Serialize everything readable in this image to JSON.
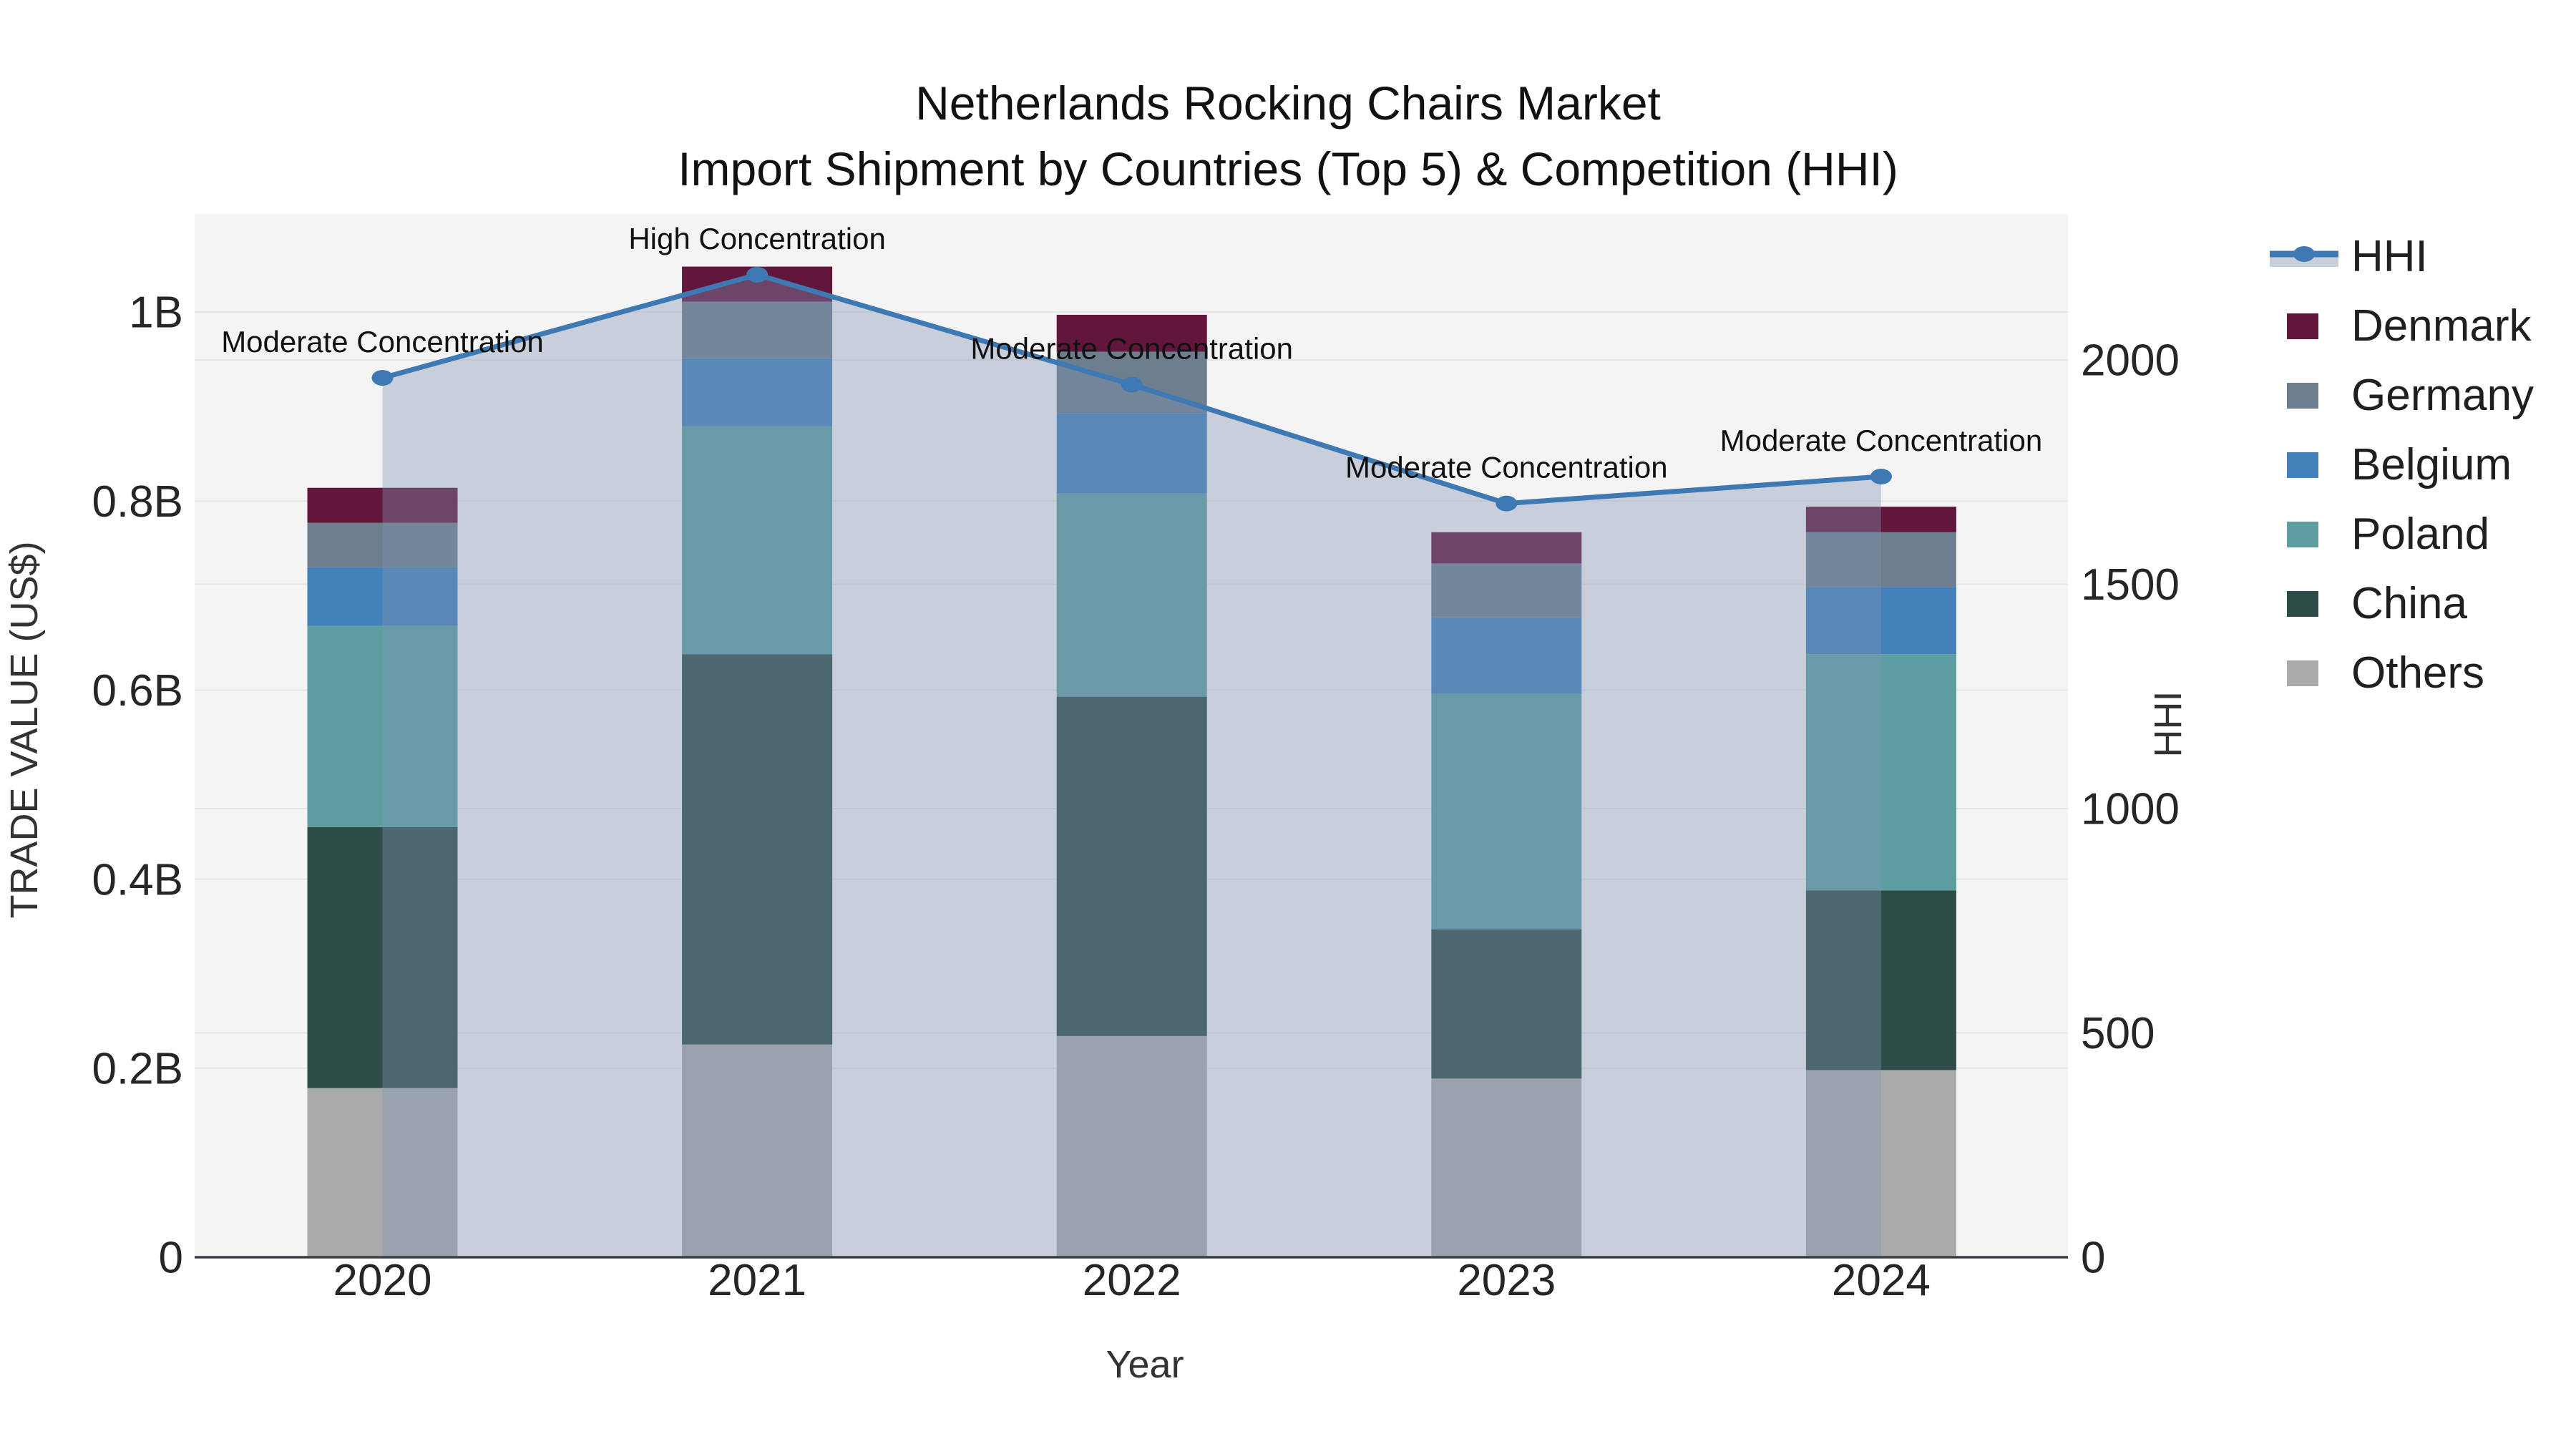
{
  "title": {
    "line1": "Netherlands Rocking Chairs Market",
    "line2": "Import Shipment by Countries (Top 5) & Competition (HHI)"
  },
  "chart_data": {
    "type": "combo-stacked-bar-line",
    "categories": [
      "2020",
      "2021",
      "2022",
      "2023",
      "2024"
    ],
    "value_unit": "billions US$",
    "series": [
      {
        "name": "Denmark",
        "color": "#62163b",
        "values": [
          0.037,
          0.037,
          0.039,
          0.033,
          0.027
        ]
      },
      {
        "name": "Germany",
        "color": "#6d7e8f",
        "values": [
          0.047,
          0.06,
          0.065,
          0.057,
          0.058
        ]
      },
      {
        "name": "Belgium",
        "color": "#4381ba",
        "values": [
          0.062,
          0.072,
          0.085,
          0.081,
          0.071
        ]
      },
      {
        "name": "Poland",
        "color": "#5d9ea0",
        "values": [
          0.213,
          0.241,
          0.215,
          0.249,
          0.25
        ]
      },
      {
        "name": "China",
        "color": "#2e4d49",
        "values": [
          0.276,
          0.413,
          0.359,
          0.158,
          0.19
        ]
      },
      {
        "name": "Others",
        "color": "#a9abaa",
        "values": [
          0.179,
          0.225,
          0.234,
          0.189,
          0.198
        ]
      }
    ],
    "stack_order_bottom_to_top": [
      "Others",
      "China",
      "Poland",
      "Belgium",
      "Germany",
      "Denmark"
    ],
    "hhi": {
      "name": "HHI",
      "line_color": "#3e79b3",
      "fill_color": "rgba(130,148,178,0.38)",
      "values": [
        1960,
        2190,
        1945,
        1680,
        1740
      ]
    },
    "annotations": [
      {
        "year": "2020",
        "text": "Moderate Concentration"
      },
      {
        "year": "2021",
        "text": "High Concentration"
      },
      {
        "year": "2022",
        "text": "Moderate Concentration"
      },
      {
        "year": "2023",
        "text": "Moderate Concentration"
      },
      {
        "year": "2024",
        "text": "Moderate Concentration"
      }
    ],
    "left_axis": {
      "title": "TRADE VALUE (US$)",
      "ticks": [
        {
          "label": "0",
          "value": 0
        },
        {
          "label": "0.2B",
          "value": 0.2
        },
        {
          "label": "0.4B",
          "value": 0.4
        },
        {
          "label": "0.6B",
          "value": 0.6
        },
        {
          "label": "0.8B",
          "value": 0.8
        },
        {
          "label": "1B",
          "value": 1.0
        }
      ],
      "range": [
        0,
        1.104
      ]
    },
    "right_axis": {
      "title": "HHI",
      "ticks": [
        {
          "label": "0",
          "value": 0
        },
        {
          "label": "500",
          "value": 500
        },
        {
          "label": "1000",
          "value": 1000
        },
        {
          "label": "1500",
          "value": 1500
        },
        {
          "label": "2000",
          "value": 2000
        }
      ],
      "range": [
        0,
        2325
      ]
    },
    "x_axis": {
      "title": "Year",
      "labels": [
        "2020",
        "2021",
        "2022",
        "2023",
        "2024"
      ]
    },
    "plot_background": "#f4f4f4",
    "gridline_color": "#e6e6e8",
    "axisline_color": "#3b3f46"
  },
  "legend": {
    "items": [
      {
        "label": "HHI",
        "type": "line"
      },
      {
        "label": "Denmark",
        "type": "swatch"
      },
      {
        "label": "Germany",
        "type": "swatch"
      },
      {
        "label": "Belgium",
        "type": "swatch"
      },
      {
        "label": "Poland",
        "type": "swatch"
      },
      {
        "label": "China",
        "type": "swatch"
      },
      {
        "label": "Others",
        "type": "swatch"
      }
    ]
  }
}
